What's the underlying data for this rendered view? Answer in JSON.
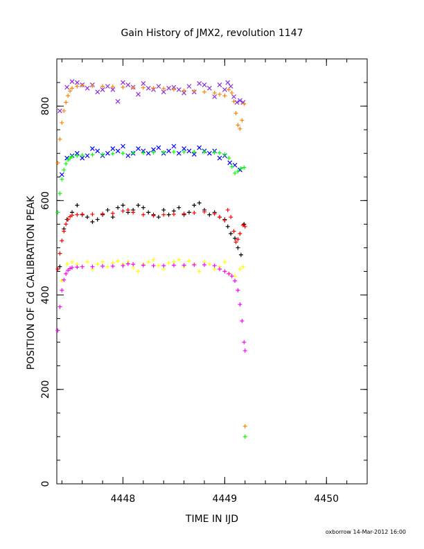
{
  "chart_data": {
    "type": "scatter",
    "title": "Gain History of JMX2, revolution 1147",
    "xlabel": "TIME IN IJD",
    "ylabel": "POSITION OF Cd CALIBRATION PEAK",
    "footer": "oxborrow 14-Mar-2012 16:00",
    "xlim": [
      4447.35,
      4450.4
    ],
    "ylim": [
      0,
      900
    ],
    "xticks": [
      4448,
      4449,
      4450
    ],
    "xtick_labels": [
      "4448",
      "4449",
      "4450"
    ],
    "yticks": [
      0,
      200,
      400,
      600,
      800
    ],
    "ytick_labels": [
      "0",
      "200",
      "400",
      "600",
      "800"
    ],
    "grid": false,
    "legend": "none",
    "series": [
      {
        "color": "#8a2be2",
        "marker": "x",
        "x": [
          4447.38,
          4447.45,
          4447.5,
          4447.55,
          4447.6,
          4447.65,
          4447.7,
          4447.75,
          4447.8,
          4447.85,
          4447.9,
          4447.95,
          4448.0,
          4448.05,
          4448.1,
          4448.15,
          4448.2,
          4448.25,
          4448.3,
          4448.35,
          4448.4,
          4448.45,
          4448.5,
          4448.55,
          4448.6,
          4448.65,
          4448.7,
          4448.75,
          4448.8,
          4448.85,
          4448.9,
          4448.95,
          4449.0,
          4449.03,
          4449.06,
          4449.09,
          4449.12,
          4449.15,
          4449.18
        ],
        "y": [
          790,
          840,
          852,
          850,
          845,
          838,
          845,
          830,
          835,
          842,
          835,
          810,
          850,
          845,
          840,
          825,
          848,
          838,
          835,
          842,
          830,
          838,
          840,
          835,
          828,
          842,
          830,
          848,
          845,
          838,
          820,
          845,
          835,
          850,
          842,
          820,
          808,
          812,
          808
        ]
      },
      {
        "color": "#ff8000",
        "marker": "+",
        "x": [
          4447.36,
          4447.38,
          4447.4,
          4447.42,
          4447.44,
          4447.46,
          4447.48,
          4447.5,
          4447.55,
          4447.6,
          4447.7,
          4447.8,
          4447.9,
          4448.0,
          4448.1,
          4448.2,
          4448.3,
          4448.4,
          4448.5,
          4448.6,
          4448.7,
          4448.8,
          4448.9,
          4448.95,
          4449.0,
          4449.04,
          4449.07,
          4449.09,
          4449.11,
          4449.13,
          4449.15,
          4449.17,
          4449.19,
          4449.2
        ],
        "y": [
          680,
          730,
          765,
          790,
          808,
          822,
          832,
          838,
          842,
          844,
          843,
          842,
          841,
          840,
          839,
          839,
          838,
          837,
          835,
          833,
          832,
          830,
          828,
          825,
          822,
          835,
          828,
          810,
          785,
          760,
          752,
          770,
          805,
          122
        ]
      },
      {
        "color": "#0000ff",
        "marker": "x",
        "x": [
          4447.4,
          4447.45,
          4447.5,
          4447.55,
          4447.6,
          4447.65,
          4447.7,
          4447.75,
          4447.8,
          4447.85,
          4447.9,
          4447.95,
          4448.0,
          4448.05,
          4448.1,
          4448.15,
          4448.2,
          4448.25,
          4448.3,
          4448.35,
          4448.4,
          4448.45,
          4448.5,
          4448.55,
          4448.6,
          4448.65,
          4448.7,
          4448.75,
          4448.8,
          4448.85,
          4448.9,
          4448.95,
          4449.0,
          4449.05,
          4449.1,
          4449.15
        ],
        "y": [
          655,
          690,
          695,
          700,
          690,
          695,
          710,
          705,
          695,
          700,
          710,
          705,
          715,
          695,
          700,
          710,
          705,
          700,
          708,
          712,
          700,
          705,
          715,
          700,
          710,
          705,
          698,
          712,
          705,
          700,
          705,
          690,
          695,
          680,
          675,
          665
        ]
      },
      {
        "color": "#00ff00",
        "marker": "+",
        "x": [
          4447.36,
          4447.38,
          4447.4,
          4447.42,
          4447.44,
          4447.46,
          4447.48,
          4447.5,
          4447.55,
          4447.6,
          4447.7,
          4447.8,
          4447.9,
          4448.0,
          4448.1,
          4448.2,
          4448.3,
          4448.4,
          4448.5,
          4448.6,
          4448.7,
          4448.8,
          4448.9,
          4448.95,
          4449.0,
          4449.04,
          4449.07,
          4449.1,
          4449.13,
          4449.16,
          4449.19,
          4449.2
        ],
        "y": [
          575,
          615,
          645,
          665,
          678,
          686,
          690,
          693,
          695,
          696,
          697,
          698,
          699,
          700,
          701,
          701,
          702,
          702,
          703,
          703,
          703,
          703,
          702,
          701,
          698,
          690,
          672,
          658,
          662,
          668,
          670,
          100
        ]
      },
      {
        "color": "#000000",
        "marker": "+",
        "x": [
          4447.38,
          4447.42,
          4447.45,
          4447.5,
          4447.55,
          4447.6,
          4447.65,
          4447.7,
          4447.75,
          4447.8,
          4447.85,
          4447.9,
          4447.95,
          4448.0,
          4448.05,
          4448.1,
          4448.15,
          4448.2,
          4448.25,
          4448.3,
          4448.35,
          4448.4,
          4448.45,
          4448.5,
          4448.55,
          4448.6,
          4448.65,
          4448.7,
          4448.75,
          4448.8,
          4448.85,
          4448.9,
          4448.95,
          4449.0,
          4449.03,
          4449.06,
          4449.1,
          4449.13,
          4449.16,
          4449.19
        ],
        "y": [
          460,
          540,
          560,
          575,
          590,
          570,
          565,
          555,
          560,
          570,
          580,
          565,
          585,
          590,
          575,
          580,
          590,
          585,
          575,
          570,
          565,
          580,
          570,
          578,
          585,
          570,
          575,
          590,
          595,
          580,
          570,
          575,
          565,
          560,
          545,
          530,
          520,
          500,
          485,
          550
        ]
      },
      {
        "color": "#ff0000",
        "marker": "+",
        "x": [
          4447.36,
          4447.38,
          4447.4,
          4447.42,
          4447.44,
          4447.46,
          4447.48,
          4447.5,
          4447.55,
          4447.6,
          4447.7,
          4447.8,
          4447.9,
          4448.0,
          4448.05,
          4448.1,
          4448.2,
          4448.3,
          4448.4,
          4448.5,
          4448.6,
          4448.7,
          4448.8,
          4448.9,
          4448.95,
          4449.0,
          4449.03,
          4449.06,
          4449.09,
          4449.11,
          4449.13,
          4449.15,
          4449.18,
          4449.2
        ],
        "y": [
          455,
          488,
          515,
          535,
          550,
          560,
          566,
          569,
          570,
          571,
          571,
          572,
          573,
          578,
          580,
          575,
          570,
          568,
          570,
          571,
          572,
          574,
          576,
          572,
          565,
          558,
          580,
          565,
          535,
          512,
          518,
          530,
          548,
          545
        ]
      },
      {
        "color": "#ffff00",
        "marker": "+",
        "x": [
          4447.4,
          4447.45,
          4447.5,
          4447.55,
          4447.6,
          4447.65,
          4447.7,
          4447.75,
          4447.8,
          4447.85,
          4447.9,
          4447.95,
          4448.0,
          4448.05,
          4448.1,
          4448.15,
          4448.2,
          4448.25,
          4448.3,
          4448.35,
          4448.4,
          4448.45,
          4448.5,
          4448.55,
          4448.6,
          4448.65,
          4448.7,
          4448.75,
          4448.8,
          4448.85,
          4448.9,
          4448.95,
          4449.0,
          4449.05,
          4449.1,
          4449.15,
          4449.18
        ],
        "y": [
          430,
          465,
          470,
          465,
          460,
          470,
          455,
          465,
          470,
          460,
          468,
          472,
          465,
          470,
          458,
          450,
          465,
          470,
          475,
          462,
          455,
          468,
          470,
          475,
          460,
          472,
          465,
          450,
          470,
          465,
          455,
          460,
          470,
          445,
          440,
          455,
          460
        ]
      },
      {
        "color": "#ff00ff",
        "marker": "+",
        "x": [
          4447.36,
          4447.38,
          4447.4,
          4447.42,
          4447.44,
          4447.46,
          4447.48,
          4447.5,
          4447.55,
          4447.6,
          4447.7,
          4447.8,
          4447.9,
          4448.0,
          4448.05,
          4448.1,
          4448.2,
          4448.3,
          4448.4,
          4448.5,
          4448.6,
          4448.7,
          4448.8,
          4448.9,
          4448.95,
          4449.0,
          4449.04,
          4449.07,
          4449.1,
          4449.13,
          4449.15,
          4449.17,
          4449.19,
          4449.2
        ],
        "y": [
          325,
          375,
          410,
          432,
          445,
          452,
          456,
          458,
          459,
          460,
          460,
          461,
          461,
          462,
          466,
          465,
          463,
          462,
          462,
          463,
          463,
          464,
          464,
          462,
          455,
          450,
          445,
          440,
          430,
          410,
          380,
          345,
          300,
          282
        ]
      }
    ]
  }
}
